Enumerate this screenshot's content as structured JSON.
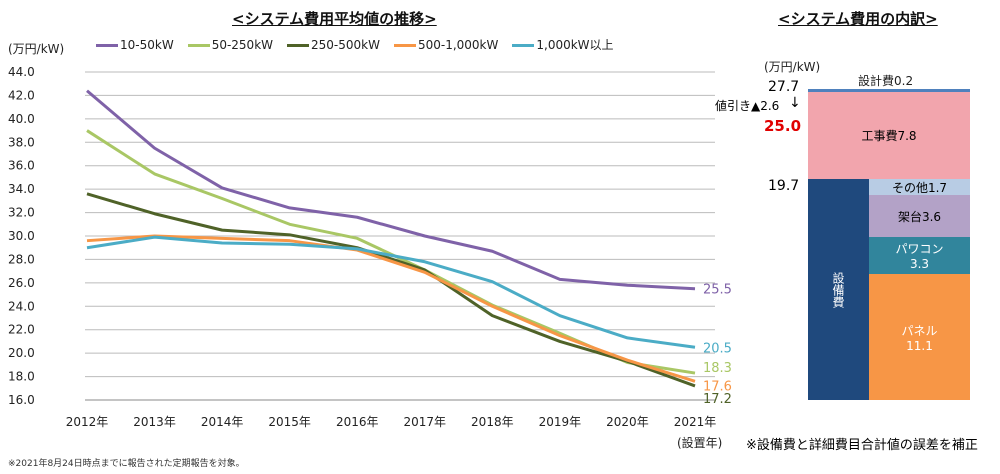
{
  "chart_data": [
    {
      "type": "line",
      "title": "<システム費用平均値の推移>",
      "ylabel": "(万円/kW)",
      "xlabel": "(設置年)",
      "ylim": [
        16,
        44
      ],
      "yticks": [
        "44.0",
        "42.0",
        "40.0",
        "38.0",
        "36.0",
        "34.0",
        "32.0",
        "30.0",
        "28.0",
        "26.0",
        "24.0",
        "22.0",
        "20.0",
        "18.0",
        "16.0"
      ],
      "categories": [
        "2012年",
        "2013年",
        "2014年",
        "2015年",
        "2016年",
        "2017年",
        "2018年",
        "2019年",
        "2020年",
        "2021年"
      ],
      "grid": true,
      "legend": "top",
      "series": [
        {
          "name": "10-50kW",
          "color": "#7F62A8",
          "values": [
            42.4,
            37.5,
            34.1,
            32.4,
            31.6,
            30.0,
            28.7,
            26.3,
            25.8,
            25.5
          ],
          "end_label": "25.5"
        },
        {
          "name": "50-250kW",
          "color": "#A9C765",
          "values": [
            39.0,
            35.3,
            33.2,
            31.0,
            29.8,
            27.1,
            24.1,
            21.7,
            19.2,
            18.3
          ],
          "end_label": "18.3"
        },
        {
          "name": "250-500kW",
          "color": "#4F6228",
          "values": [
            33.6,
            31.9,
            30.5,
            30.1,
            29.0,
            27.1,
            23.2,
            21.0,
            19.3,
            17.2
          ],
          "end_label": "17.2"
        },
        {
          "name": "500-1,000kW",
          "color": "#F79646",
          "values": [
            29.6,
            30.0,
            29.8,
            29.6,
            28.8,
            26.9,
            24.0,
            21.5,
            19.4,
            17.6
          ],
          "end_label": "17.6"
        },
        {
          "name": "1,000kW以上",
          "color": "#4BACC6",
          "values": [
            29.0,
            29.9,
            29.4,
            29.3,
            28.9,
            27.8,
            26.1,
            23.2,
            21.3,
            20.5
          ],
          "end_label": "20.5"
        }
      ]
    },
    {
      "type": "bar",
      "title": "<システム費用の内訳>",
      "ylabel": "(万円/kW)",
      "total": "27.7",
      "discount_label": "値引き▲2.6",
      "net": "25.0",
      "equipment_total": "19.7",
      "segments": [
        {
          "label": "設計費0.2",
          "value": 0.2,
          "color": "#4F81BD"
        },
        {
          "label": "工事費7.8",
          "value": 7.8,
          "color": "#F2A5AD"
        },
        {
          "label": "その他1.7",
          "value": 1.7,
          "color": "#B8CCE4"
        },
        {
          "label": "架台3.6",
          "value": 3.6,
          "color": "#B3A2C7"
        },
        {
          "label": "パワコン",
          "value_label": "3.3",
          "value": 3.3,
          "color": "#31859C"
        },
        {
          "label": "パネル",
          "value_label": "11.1",
          "value": 11.1,
          "color": "#F79646"
        },
        {
          "label": "設備費",
          "value": 19.7,
          "color": "#1F497D"
        }
      ],
      "note": "※設備費と詳細費目合計値の誤差を補正"
    }
  ],
  "footnote": "※2021年8月24日時点までに報告された定期報告を対象。"
}
